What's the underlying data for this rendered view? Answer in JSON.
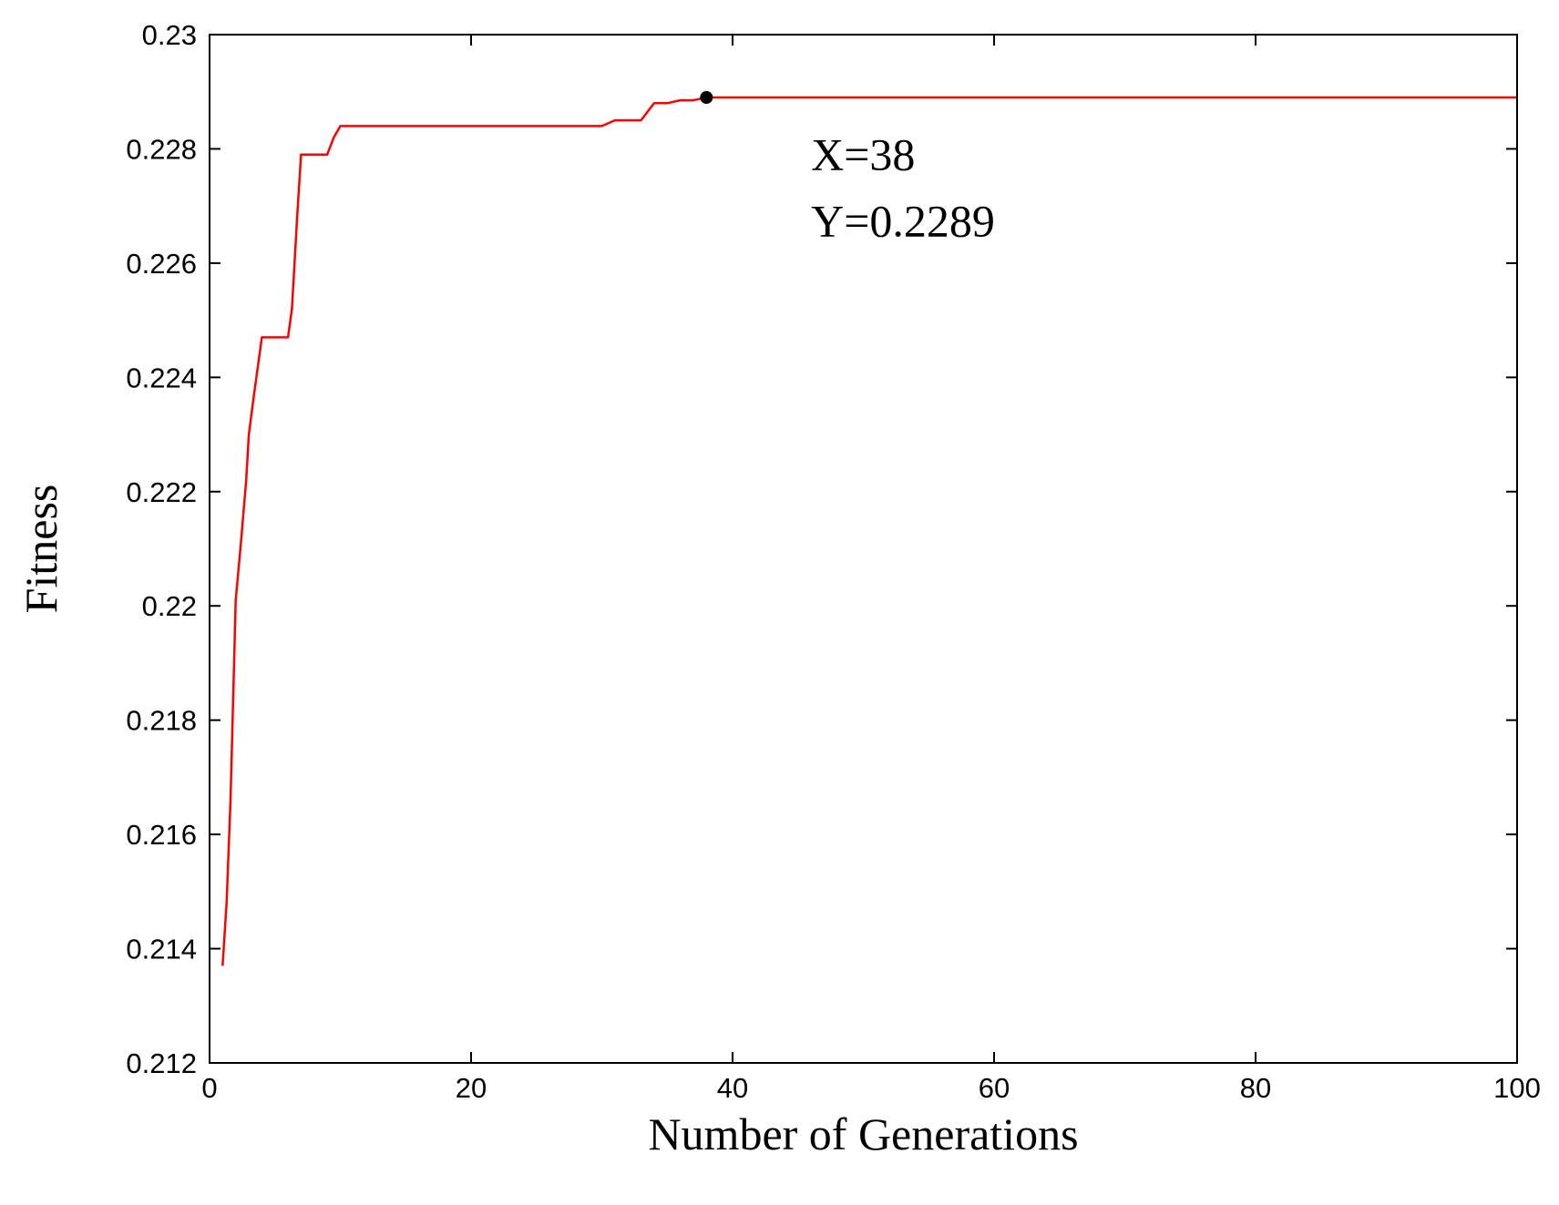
{
  "chart_data": {
    "type": "line",
    "title": "",
    "xlabel": "Number of Generations",
    "ylabel": "Fitness",
    "xlim": [
      0,
      100
    ],
    "ylim": [
      0.212,
      0.23
    ],
    "xticks": [
      0,
      20,
      40,
      60,
      80,
      100
    ],
    "xtick_labels": [
      "0",
      "20",
      "40",
      "60",
      "80",
      "100"
    ],
    "yticks": [
      0.212,
      0.214,
      0.216,
      0.218,
      0.22,
      0.222,
      0.224,
      0.226,
      0.228,
      0.23
    ],
    "ytick_labels": [
      "0.212",
      "0.214",
      "0.216",
      "0.218",
      "0.22",
      "0.222",
      "0.224",
      "0.226",
      "0.228",
      "0.23"
    ],
    "grid": false,
    "series": [
      {
        "color": "#ff0000",
        "x": [
          1,
          1.3,
          1.6,
          2,
          2.4,
          2.8,
          3,
          3.4,
          4,
          4.5,
          5,
          5.8,
          6,
          6.3,
          6.7,
          7,
          7.5,
          8,
          8.5,
          9,
          9.5,
          10,
          12,
          15,
          20,
          25,
          30,
          31,
          32,
          33,
          34,
          35,
          36,
          37,
          38,
          40,
          48,
          50,
          60,
          70,
          80,
          90,
          100
        ],
        "y": [
          0.2137,
          0.2148,
          0.2166,
          0.2201,
          0.2211,
          0.2222,
          0.223,
          0.2237,
          0.2247,
          0.2247,
          0.2247,
          0.2247,
          0.2247,
          0.2252,
          0.2268,
          0.2279,
          0.2279,
          0.2279,
          0.2279,
          0.2279,
          0.2282,
          0.2284,
          0.2284,
          0.2284,
          0.2284,
          0.2284,
          0.2284,
          0.2285,
          0.2285,
          0.2285,
          0.2288,
          0.2288,
          0.22885,
          0.22885,
          0.2289,
          0.2289,
          0.2289,
          0.2289,
          0.2289,
          0.2289,
          0.2289,
          0.2289,
          0.2289
        ]
      }
    ],
    "marker": {
      "x": 38,
      "y": 0.2289,
      "color": "#000000"
    },
    "annotation": {
      "line1": "X=38",
      "line2": "Y=0.2289",
      "x": 46,
      "y": 0.2279
    }
  }
}
